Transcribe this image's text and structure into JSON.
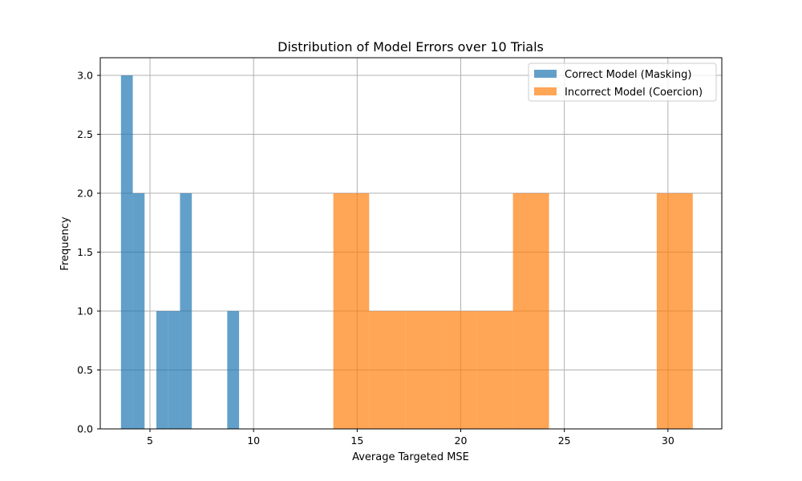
{
  "chart_data": {
    "type": "bar",
    "title": "Distribution of Model Errors over 10 Trials",
    "xlabel": "Average Targeted MSE",
    "ylabel": "Frequency",
    "xlim": [
      2.6,
      32.6
    ],
    "ylim": [
      0,
      3.15
    ],
    "xticks": [
      5,
      10,
      15,
      20,
      25,
      30
    ],
    "yticks": [
      0.0,
      0.5,
      1.0,
      1.5,
      2.0,
      2.5,
      3.0
    ],
    "grid": true,
    "legend_position": "top-right",
    "series": [
      {
        "name": "Correct Model (Masking)",
        "color": "#1f77b4",
        "opacity": 0.7,
        "bins": [
          {
            "x0": 3.6,
            "x1": 4.17,
            "count": 3
          },
          {
            "x0": 4.17,
            "x1": 4.74,
            "count": 2
          },
          {
            "x0": 5.31,
            "x1": 5.88,
            "count": 1
          },
          {
            "x0": 5.88,
            "x1": 6.45,
            "count": 1
          },
          {
            "x0": 6.45,
            "x1": 7.02,
            "count": 2
          },
          {
            "x0": 8.73,
            "x1": 9.3,
            "count": 1
          }
        ]
      },
      {
        "name": "Incorrect Model (Coercion)",
        "color": "#ff7f0e",
        "opacity": 0.7,
        "bins": [
          {
            "x0": 13.85,
            "x1": 15.58,
            "count": 2
          },
          {
            "x0": 15.58,
            "x1": 17.32,
            "count": 1
          },
          {
            "x0": 17.32,
            "x1": 19.05,
            "count": 1
          },
          {
            "x0": 19.05,
            "x1": 20.79,
            "count": 1
          },
          {
            "x0": 20.79,
            "x1": 22.52,
            "count": 1
          },
          {
            "x0": 22.52,
            "x1": 24.26,
            "count": 2
          },
          {
            "x0": 29.46,
            "x1": 31.2,
            "count": 2
          }
        ]
      }
    ]
  }
}
